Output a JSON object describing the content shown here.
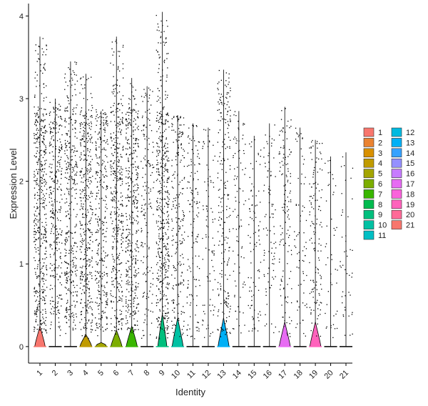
{
  "chart_data": {
    "type": "violin",
    "xlabel": "Identity",
    "ylabel": "Expression Level",
    "ylim": [
      -0.2,
      4.15
    ],
    "yticks": [
      0,
      1,
      2,
      3,
      4
    ],
    "categories": [
      "1",
      "2",
      "3",
      "4",
      "5",
      "6",
      "7",
      "8",
      "9",
      "10",
      "11",
      "12",
      "13",
      "14",
      "15",
      "16",
      "17",
      "18",
      "19",
      "20",
      "21"
    ],
    "colors": [
      "#F8766D",
      "#EA8331",
      "#D89000",
      "#C09B00",
      "#A3A500",
      "#7CAE00",
      "#39B600",
      "#00BB4E",
      "#00BF7D",
      "#00C1A3",
      "#00BFC4",
      "#00BAE0",
      "#00B0F6",
      "#35A2FF",
      "#9590FF",
      "#C77CFF",
      "#E76BF3",
      "#FA62DB",
      "#FF62BC",
      "#FF6A98",
      "#F8766D"
    ],
    "violins": [
      {
        "max": 3.75,
        "density": 0.55,
        "bulge_h": 0.25,
        "bulge_w": 0.8
      },
      {
        "max": 3.0,
        "density": 0.35,
        "bulge_h": 0.0,
        "bulge_w": 0.0
      },
      {
        "max": 3.45,
        "density": 0.4,
        "bulge_h": 0.0,
        "bulge_w": 0.0
      },
      {
        "max": 3.3,
        "density": 0.45,
        "bulge_h": 0.15,
        "bulge_w": 0.9
      },
      {
        "max": 2.85,
        "density": 0.35,
        "bulge_h": 0.05,
        "bulge_w": 0.8
      },
      {
        "max": 3.75,
        "density": 0.45,
        "bulge_h": 0.2,
        "bulge_w": 0.85
      },
      {
        "max": 3.25,
        "density": 0.45,
        "bulge_h": 0.25,
        "bulge_w": 0.85
      },
      {
        "max": 3.15,
        "density": 0.18,
        "bulge_h": 0.0,
        "bulge_w": 0.0
      },
      {
        "max": 4.05,
        "density": 0.55,
        "bulge_h": 0.4,
        "bulge_w": 0.7
      },
      {
        "max": 2.8,
        "density": 0.25,
        "bulge_h": 0.35,
        "bulge_w": 0.85
      },
      {
        "max": 2.7,
        "density": 0.15,
        "bulge_h": 0.0,
        "bulge_w": 0.0
      },
      {
        "max": 2.65,
        "density": 0.1,
        "bulge_h": 0.0,
        "bulge_w": 0.0
      },
      {
        "max": 3.35,
        "density": 0.25,
        "bulge_h": 0.35,
        "bulge_w": 0.85
      },
      {
        "max": 2.85,
        "density": 0.1,
        "bulge_h": 0.0,
        "bulge_w": 0.0
      },
      {
        "max": 2.55,
        "density": 0.1,
        "bulge_h": 0.0,
        "bulge_w": 0.0
      },
      {
        "max": 2.7,
        "density": 0.1,
        "bulge_h": 0.0,
        "bulge_w": 0.0
      },
      {
        "max": 2.9,
        "density": 0.15,
        "bulge_h": 0.3,
        "bulge_w": 0.85
      },
      {
        "max": 2.65,
        "density": 0.08,
        "bulge_h": 0.0,
        "bulge_w": 0.0
      },
      {
        "max": 2.5,
        "density": 0.15,
        "bulge_h": 0.3,
        "bulge_w": 0.85
      },
      {
        "max": 2.3,
        "density": 0.05,
        "bulge_h": 0.0,
        "bulge_w": 0.0
      },
      {
        "max": 2.35,
        "density": 0.05,
        "bulge_h": 0.0,
        "bulge_w": 0.0
      }
    ],
    "legend": {
      "placement": "right",
      "entries": [
        "1",
        "2",
        "3",
        "4",
        "5",
        "6",
        "7",
        "8",
        "9",
        "10",
        "11",
        "12",
        "13",
        "14",
        "15",
        "16",
        "17",
        "18",
        "19",
        "20",
        "21"
      ]
    },
    "grid": false
  }
}
